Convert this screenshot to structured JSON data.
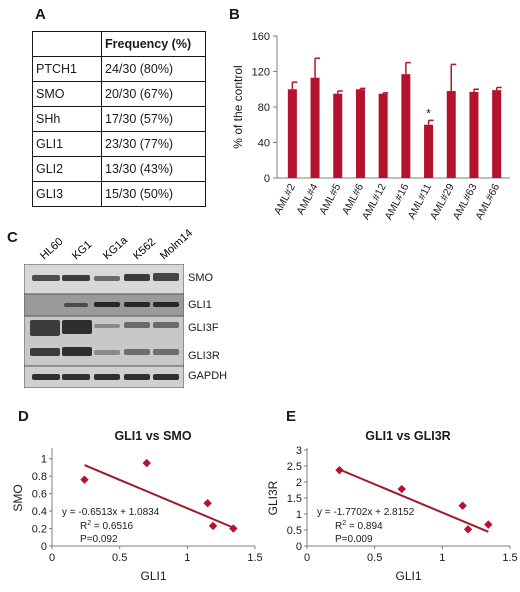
{
  "panels": {
    "a": "A",
    "b": "B",
    "c": "C",
    "d": "D",
    "e": "E"
  },
  "table": {
    "header": [
      "",
      "Frequency (%)"
    ],
    "rows": [
      [
        "PTCH1",
        "24/30 (80%)"
      ],
      [
        "SMO",
        "20/30 (67%)"
      ],
      [
        "SHh",
        "17/30 (57%)"
      ],
      [
        "GLI1",
        "23/30 (77%)"
      ],
      [
        "GLI2",
        "13/30 (43%)"
      ],
      [
        "GLI3",
        "15/30 (50%)"
      ]
    ]
  },
  "blot": {
    "lanes": [
      "HL60",
      "KG1",
      "KG1a",
      "K562",
      "Molm14"
    ],
    "bands": [
      "SMO",
      "GLI1",
      "GLI3F",
      "GLI3R",
      "GAPDH"
    ]
  },
  "colors": {
    "bar": "#b5122e",
    "line": "#9e1b2c",
    "marker": "#b5122e",
    "axis": "#7f7f7f"
  },
  "chart_data": [
    {
      "type": "bar",
      "ylabel": "% of the control",
      "ylim": [
        0,
        160
      ],
      "yticks": [
        "0",
        "40",
        "80",
        "120",
        "160"
      ],
      "categories": [
        "AML#2",
        "AML#4",
        "AML#5",
        "AML#6",
        "AML#12",
        "AML#16",
        "AML#11",
        "AML#29",
        "AML#63",
        "AML#66"
      ],
      "values": [
        100,
        113,
        95,
        100,
        95,
        117,
        60,
        98,
        97,
        99
      ],
      "errors": [
        8,
        22,
        3,
        1,
        1,
        13,
        5,
        30,
        3,
        3
      ],
      "annotation": {
        "category": "AML#11",
        "text": "*"
      }
    },
    {
      "type": "scatter",
      "title": "GLI1 vs SMO",
      "xlabel": "GLI1",
      "ylabel": "SMO",
      "xlim": [
        0,
        1.5
      ],
      "ylim": [
        0,
        1.1
      ],
      "xticks": [
        "0",
        "0.5",
        "1",
        "1.5"
      ],
      "yticks": [
        "0",
        "0.2",
        "0.4",
        "0.6",
        "0.8",
        "1"
      ],
      "points": [
        [
          0.24,
          0.76
        ],
        [
          0.7,
          0.95
        ],
        [
          1.15,
          0.49
        ],
        [
          1.19,
          0.23
        ],
        [
          1.34,
          0.2
        ]
      ],
      "trendline": {
        "slope": -0.6513,
        "intercept": 1.0834,
        "x_range": [
          0.24,
          1.34
        ]
      },
      "annotations": [
        "y = -0.6513x + 1.0834",
        "R",
        "2",
        " = 0.6516",
        "P=0.092"
      ]
    },
    {
      "type": "scatter",
      "title": "GLI1 vs GLI3R",
      "xlabel": "GLI1",
      "ylabel": "GLI3R",
      "xlim": [
        0,
        1.5
      ],
      "ylim": [
        0,
        3
      ],
      "xticks": [
        "0",
        "0.5",
        "1",
        "1.5"
      ],
      "yticks": [
        "0",
        "0.5",
        "1",
        "1.5",
        "2",
        "2.5",
        "3"
      ],
      "points": [
        [
          0.24,
          2.37
        ],
        [
          0.7,
          1.78
        ],
        [
          1.15,
          1.26
        ],
        [
          1.19,
          0.52
        ],
        [
          1.34,
          0.67
        ]
      ],
      "trendline": {
        "slope": -1.7702,
        "intercept": 2.8152,
        "x_range": [
          0.24,
          1.34
        ]
      },
      "annotations": [
        "y = -1.7702x + 2.8152",
        "R",
        "2",
        " = 0.894",
        "P=0.009"
      ]
    }
  ]
}
